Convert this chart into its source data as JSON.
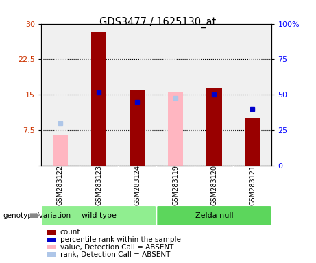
{
  "title": "GDS3477 / 1625130_at",
  "samples": [
    "GSM283122",
    "GSM283123",
    "GSM283124",
    "GSM283119",
    "GSM283120",
    "GSM283121"
  ],
  "groups": [
    {
      "name": "wild type",
      "indices": [
        0,
        1,
        2
      ],
      "color": "#90ee90"
    },
    {
      "name": "Zelda null",
      "indices": [
        3,
        4,
        5
      ],
      "color": "#5cd65c"
    }
  ],
  "count_values": [
    null,
    28.2,
    15.9,
    null,
    16.5,
    10.0
  ],
  "absent_values": [
    6.5,
    null,
    null,
    15.5,
    null,
    null
  ],
  "percentile_rank_vals": [
    null,
    15.5,
    13.5,
    null,
    15.0,
    12.0
  ],
  "absent_rank_vals": [
    9.0,
    null,
    null,
    14.3,
    null,
    null
  ],
  "ylim_left": [
    0,
    30
  ],
  "ylim_right": [
    0,
    100
  ],
  "yticks_left": [
    0,
    7.5,
    15,
    22.5,
    30
  ],
  "yticks_right": [
    0,
    25,
    50,
    75,
    100
  ],
  "bar_width": 0.4,
  "count_color": "#990000",
  "absent_bar_color": "#ffb6c1",
  "percentile_color": "#0000cc",
  "absent_rank_color": "#aec6e8",
  "plot_bg": "#f0f0f0",
  "label_bg": "#cccccc",
  "genotype_label": "genotype/variation",
  "legend_items": [
    {
      "label": "count",
      "color": "#990000"
    },
    {
      "label": "percentile rank within the sample",
      "color": "#0000cc"
    },
    {
      "label": "value, Detection Call = ABSENT",
      "color": "#ffb6c1"
    },
    {
      "label": "rank, Detection Call = ABSENT",
      "color": "#aec6e8"
    }
  ]
}
